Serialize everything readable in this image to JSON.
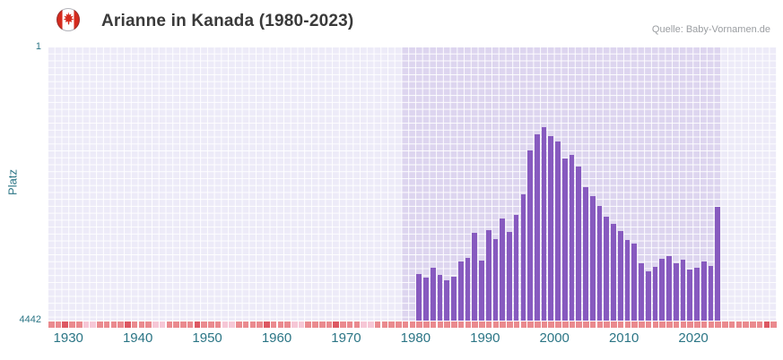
{
  "header": {
    "title": "Arianne in Kanada (1980-2023)",
    "source": "Quelle: Baby-Vornamen.de",
    "flag_icon": "canada-flag-icon"
  },
  "chart_data": {
    "type": "bar",
    "title": "Arianne in Kanada (1980-2023)",
    "xlabel": "",
    "ylabel": "Platz",
    "y_axis": {
      "top_label": "1",
      "bottom_label": "4442",
      "min": 1,
      "max": 4442,
      "inverted": true
    },
    "x_range": [
      1927,
      2032
    ],
    "x_ticks": [
      1930,
      1940,
      1950,
      1960,
      1970,
      1980,
      1990,
      2000,
      2010,
      2020
    ],
    "highlight_band": [
      1978,
      2024
    ],
    "years": [
      1980,
      1981,
      1982,
      1983,
      1984,
      1985,
      1986,
      1987,
      1988,
      1989,
      1990,
      1991,
      1992,
      1993,
      1994,
      1995,
      1996,
      1997,
      1998,
      1999,
      2000,
      2001,
      2002,
      2003,
      2004,
      2005,
      2006,
      2007,
      2008,
      2009,
      2010,
      2011,
      2012,
      2013,
      2014,
      2015,
      2016,
      2017,
      2018,
      2019,
      2020,
      2021,
      2022,
      2023
    ],
    "values": [
      3690,
      3740,
      3580,
      3700,
      3790,
      3730,
      3480,
      3420,
      3020,
      3470,
      2980,
      3120,
      2790,
      3000,
      2730,
      2390,
      1680,
      1420,
      1310,
      1450,
      1540,
      1820,
      1760,
      1940,
      2280,
      2420,
      2580,
      2760,
      2870,
      2990,
      3130,
      3190,
      3520,
      3640,
      3570,
      3440,
      3390,
      3520,
      3460,
      3610,
      3580,
      3480,
      3560,
      2600
    ],
    "legend": [],
    "grid": true,
    "colors": {
      "bar": "#875abf",
      "plot_background": "#edebf8",
      "highlight_band": "#ddd5ef",
      "gridline": "#ffffff",
      "axis_text": "#2b7585",
      "title_text": "#3a3a3a",
      "source_text": "#9a9da1"
    },
    "axis_strip": {
      "base_color": "#ea8a8e",
      "dark_color": "#dd5862",
      "light_color": "#f6c7d6",
      "dark_years": [
        1929,
        1938,
        1948,
        1958,
        1968,
        2030
      ],
      "light_years": [
        1932,
        1933,
        1942,
        1943,
        1952,
        1953,
        1962,
        1963,
        1972,
        1973
      ]
    }
  }
}
